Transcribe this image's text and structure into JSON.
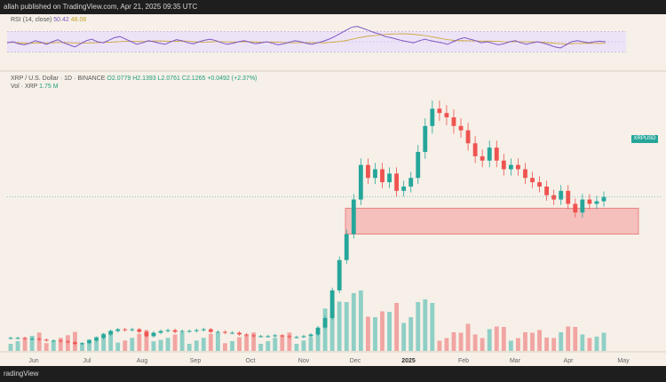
{
  "header": {
    "publisher_text": "allah published on TradingView.com, Apr 21, 2025 09:35 UTC"
  },
  "footer": {
    "brand": "radingView"
  },
  "rsi": {
    "label": "RSI (14, close)",
    "value": "50.42",
    "ma_value": "48.06",
    "levels": [
      30,
      50,
      70
    ],
    "line_color": "#7e57c2",
    "ma_color": "#c9a227",
    "values": [
      48,
      50,
      46,
      44,
      47,
      52,
      49,
      45,
      50,
      54,
      48,
      44,
      40,
      46,
      52,
      55,
      50,
      48,
      53,
      58,
      60,
      55,
      50,
      45,
      48,
      52,
      50,
      47,
      45,
      50,
      54,
      52,
      48,
      46,
      50,
      53,
      55,
      52,
      48,
      45,
      47,
      50,
      52,
      49,
      46,
      48,
      50,
      47,
      44,
      46,
      49,
      52,
      50,
      47,
      45,
      48,
      51,
      55,
      60,
      66,
      72,
      78,
      80,
      76,
      72,
      68,
      65,
      60,
      58,
      55,
      52,
      50,
      48,
      52,
      55,
      52,
      50,
      48,
      45,
      50,
      55,
      58,
      55,
      52,
      48,
      50,
      47,
      44,
      46,
      50,
      52,
      48,
      45,
      48,
      50,
      47,
      44,
      40,
      38,
      44,
      50,
      52,
      50,
      48,
      50,
      51,
      50
    ]
  },
  "legend": {
    "pair": "XRP / U.S. Dollar · 1D · BINANCE",
    "open": "O2.0779",
    "high": "H2.1393",
    "low": "L2.0761",
    "close": "C2.1265",
    "change": "+0.0492 (+2.37%)",
    "vol_label": "Vol · XRP",
    "vol_value": "1.75 M"
  },
  "price_badge": {
    "label": "XRPUSD"
  },
  "colors": {
    "up": "#26a69a",
    "down": "#ef5350",
    "zone_fill": "#f4b6b4",
    "zone_border": "#e57373",
    "vol_up": "#8fcfc5",
    "vol_down": "#f1a5a2"
  },
  "chart_data": {
    "type": "candlestick",
    "x_ticks": [
      "Jun",
      "Jul",
      "Aug",
      "Sep",
      "Oct",
      "Nov",
      "Dec",
      "2025",
      "Feb",
      "Mar",
      "Apr",
      "May"
    ],
    "close_series": [
      0.5,
      0.5,
      0.49,
      0.49,
      0.48,
      0.47,
      0.47,
      0.46,
      0.45,
      0.43,
      0.44,
      0.47,
      0.5,
      0.54,
      0.58,
      0.6,
      0.59,
      0.6,
      0.57,
      0.52,
      0.56,
      0.58,
      0.59,
      0.57,
      0.58,
      0.58,
      0.59,
      0.6,
      0.57,
      0.57,
      0.56,
      0.56,
      0.54,
      0.53,
      0.52,
      0.52,
      0.52,
      0.53,
      0.52,
      0.51,
      0.51,
      0.52,
      0.54,
      0.62,
      0.73,
      1.05,
      1.4,
      1.7,
      2.1,
      2.5,
      2.35,
      2.45,
      2.3,
      2.4,
      2.2,
      2.25,
      2.35,
      2.65,
      2.95,
      3.15,
      3.1,
      3.05,
      2.95,
      2.9,
      2.75,
      2.6,
      2.55,
      2.7,
      2.55,
      2.45,
      2.5,
      2.45,
      2.35,
      2.3,
      2.25,
      2.15,
      2.1,
      2.2,
      2.05,
      1.95,
      2.1,
      2.05,
      2.08,
      2.13
    ],
    "resistance_zone": {
      "top": 2.0,
      "bottom": 1.7
    },
    "ylim": [
      0.35,
      3.4
    ]
  }
}
